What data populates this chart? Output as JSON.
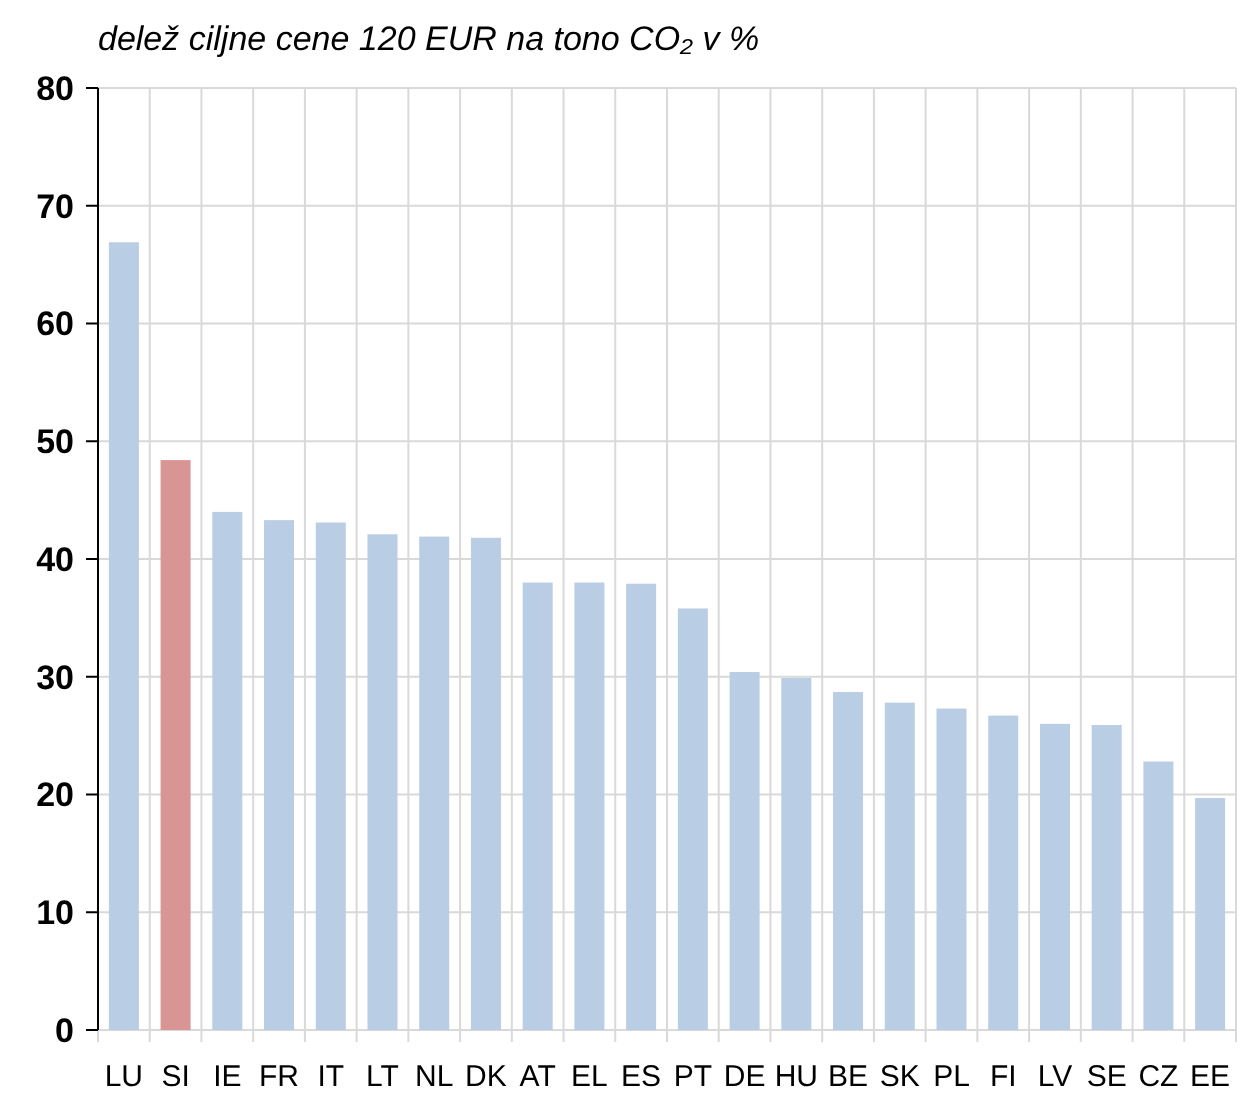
{
  "chart_data": {
    "type": "bar",
    "title": "delež ciljne cene 120 EUR na tono CO₂ v %",
    "categories": [
      "LU",
      "SI",
      "IE",
      "FR",
      "IT",
      "LT",
      "NL",
      "DK",
      "AT",
      "EL",
      "ES",
      "PT",
      "DE",
      "HU",
      "BE",
      "SK",
      "PL",
      "FI",
      "LV",
      "SE",
      "CZ",
      "EE"
    ],
    "values": [
      66.9,
      48.4,
      44.0,
      43.3,
      43.1,
      42.1,
      41.9,
      41.8,
      38.0,
      38.0,
      37.9,
      35.8,
      30.4,
      29.9,
      28.7,
      27.8,
      27.3,
      26.7,
      26.0,
      25.9,
      22.8,
      19.7
    ],
    "colors": [
      "#b9cde4",
      "#d99594",
      "#b9cde4",
      "#b9cde4",
      "#b9cde4",
      "#b9cde4",
      "#b9cde4",
      "#b9cde4",
      "#b9cde4",
      "#b9cde4",
      "#b9cde4",
      "#b9cde4",
      "#b9cde4",
      "#b9cde4",
      "#b9cde4",
      "#b9cde4",
      "#b9cde4",
      "#b9cde4",
      "#b9cde4",
      "#b9cde4",
      "#b9cde4",
      "#b9cde4"
    ],
    "ylim": [
      0,
      80
    ],
    "yticks": [
      0,
      10,
      20,
      30,
      40,
      50,
      60,
      70,
      80
    ],
    "grid": true
  }
}
